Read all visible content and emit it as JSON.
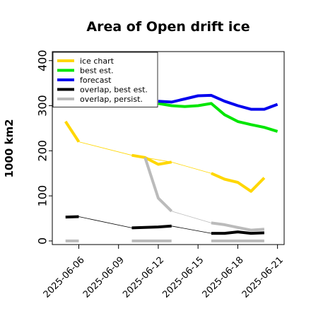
{
  "chart_data": {
    "type": "line",
    "title": "Area of Open drift ice",
    "ylabel": "1000 km2",
    "xlabel": "",
    "ylim": [
      -8,
      420
    ],
    "xlim": [
      "2025-06-04",
      "2025-06-21.5"
    ],
    "yticks": [
      0,
      100,
      200,
      300,
      400
    ],
    "xticks": [
      {
        "date": "2025-06-06",
        "label": "2025-06-06",
        "color": "#000000"
      },
      {
        "date": "2025-06-09",
        "label": "2025-06-09",
        "color": "#000000"
      },
      {
        "date": "2025-06-12",
        "label": "2025-06-12",
        "color": "#228b22"
      },
      {
        "date": "2025-06-15",
        "label": "2025-06-15",
        "color": "#000000"
      },
      {
        "date": "2025-06-18",
        "label": "2025-06-18",
        "color": "#000000"
      },
      {
        "date": "2025-06-21",
        "label": "2025-06-21",
        "color": "#000000"
      }
    ],
    "grid": false,
    "legend_position": "top-left",
    "series": [
      {
        "name": "ice chart",
        "color": "#ffd700",
        "segments": [
          [
            [
              "2025-06-05",
              265
            ],
            [
              "2025-06-06",
              220
            ]
          ],
          [
            [
              "2025-06-10",
              190
            ],
            [
              "2025-06-11",
              185
            ],
            [
              "2025-06-12",
              170
            ],
            [
              "2025-06-13",
              175
            ]
          ],
          [
            [
              "2025-06-16",
              150
            ],
            [
              "2025-06-17",
              137
            ],
            [
              "2025-06-18",
              130
            ],
            [
              "2025-06-19",
              110
            ],
            [
              "2025-06-20",
              140
            ]
          ]
        ],
        "connector": [
          [
            "2025-06-06",
            220
          ],
          [
            "2025-06-10",
            190
          ],
          [
            "2025-06-13",
            175
          ],
          [
            "2025-06-16",
            150
          ]
        ]
      },
      {
        "name": "best est.",
        "color": "#00e600",
        "segments": [
          [
            [
              "2025-06-12",
              305
            ],
            [
              "2025-06-13",
              300
            ],
            [
              "2025-06-14",
              298
            ],
            [
              "2025-06-15",
              300
            ],
            [
              "2025-06-16",
              305
            ],
            [
              "2025-06-17",
              280
            ],
            [
              "2025-06-18",
              265
            ],
            [
              "2025-06-19",
              258
            ],
            [
              "2025-06-20",
              252
            ],
            [
              "2025-06-21",
              243
            ]
          ]
        ]
      },
      {
        "name": "forecast",
        "color": "#0000ee",
        "segments": [
          [
            [
              "2025-06-12",
              310
            ],
            [
              "2025-06-13",
              308
            ],
            [
              "2025-06-14",
              315
            ],
            [
              "2025-06-15",
              322
            ],
            [
              "2025-06-16",
              323
            ],
            [
              "2025-06-17",
              310
            ],
            [
              "2025-06-18",
              300
            ],
            [
              "2025-06-19",
              292
            ],
            [
              "2025-06-20",
              292
            ],
            [
              "2025-06-21",
              303
            ]
          ]
        ]
      },
      {
        "name": "overlap, best est.",
        "color": "#000000",
        "segments": [
          [
            [
              "2025-06-05",
              53
            ],
            [
              "2025-06-06",
              54
            ]
          ],
          [
            [
              "2025-06-10",
              29
            ],
            [
              "2025-06-11",
              30
            ],
            [
              "2025-06-12",
              31
            ],
            [
              "2025-06-13",
              33
            ]
          ],
          [
            [
              "2025-06-16",
              17
            ],
            [
              "2025-06-17",
              17
            ],
            [
              "2025-06-18",
              20
            ],
            [
              "2025-06-19",
              17
            ],
            [
              "2025-06-20",
              18
            ]
          ]
        ],
        "connector": [
          [
            "2025-06-06",
            54
          ],
          [
            "2025-06-10",
            29
          ],
          [
            "2025-06-13",
            33
          ],
          [
            "2025-06-16",
            17
          ]
        ]
      },
      {
        "name": "overlap, persist.",
        "color": "#bbbbbb",
        "segments": [
          [
            [
              "2025-06-05",
              0
            ],
            [
              "2025-06-06",
              0
            ]
          ],
          [
            [
              "2025-06-10",
              0
            ],
            [
              "2025-06-13",
              0
            ]
          ],
          [
            [
              "2025-06-16",
              0
            ],
            [
              "2025-06-20",
              0
            ]
          ],
          [
            [
              "2025-06-11",
              185
            ],
            [
              "2025-06-12",
              95
            ],
            [
              "2025-06-13",
              66
            ]
          ],
          [
            [
              "2025-06-16",
              40
            ],
            [
              "2025-06-17",
              36
            ],
            [
              "2025-06-18",
              30
            ],
            [
              "2025-06-19",
              24
            ],
            [
              "2025-06-20",
              26
            ]
          ]
        ],
        "connector": [
          [
            "2025-06-13",
            66
          ],
          [
            "2025-06-16",
            40
          ]
        ]
      }
    ]
  }
}
